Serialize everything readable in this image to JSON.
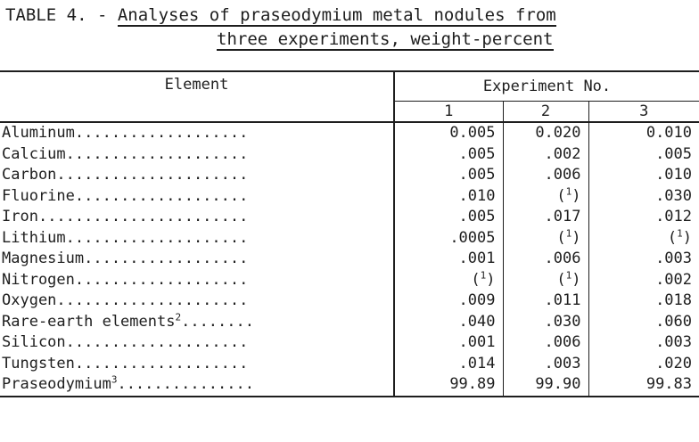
{
  "caption": {
    "prefix": "TABLE 4. - ",
    "line1": "Analyses of praseodymium metal nodules from",
    "line2": "three experiments, weight-percent"
  },
  "table": {
    "element_header": "Element",
    "group_header": "Experiment No.",
    "experiments": [
      "1",
      "2",
      "3"
    ],
    "rows": [
      {
        "name": "Aluminum",
        "sup": "",
        "dots": "...................",
        "values": [
          "0.005",
          "0.020",
          "0.010"
        ]
      },
      {
        "name": "Calcium",
        "sup": "",
        "dots": "....................",
        "values": [
          ".005",
          ".002",
          ".005"
        ]
      },
      {
        "name": "Carbon",
        "sup": "",
        "dots": ".....................",
        "values": [
          ".005",
          ".006",
          ".010"
        ]
      },
      {
        "name": "Fluorine",
        "sup": "",
        "dots": "...................",
        "values": [
          ".010",
          "(1)",
          ".030"
        ]
      },
      {
        "name": "Iron",
        "sup": "",
        "dots": ".......................",
        "values": [
          ".005",
          ".017",
          ".012"
        ]
      },
      {
        "name": "Lithium",
        "sup": "",
        "dots": "....................",
        "values": [
          ".0005",
          "(1)",
          "(1)"
        ]
      },
      {
        "name": "Magnesium",
        "sup": "",
        "dots": "..................",
        "values": [
          ".001",
          ".006",
          ".003"
        ]
      },
      {
        "name": "Nitrogen",
        "sup": "",
        "dots": "...................",
        "values": [
          "(1)",
          "(1)",
          ".002"
        ]
      },
      {
        "name": "Oxygen",
        "sup": "",
        "dots": ".....................",
        "values": [
          ".009",
          ".011",
          ".018"
        ]
      },
      {
        "name": "Rare-earth elements",
        "sup": "2",
        "dots": "........",
        "values": [
          ".040",
          ".030",
          ".060"
        ]
      },
      {
        "name": "Silicon",
        "sup": "",
        "dots": "....................",
        "values": [
          ".001",
          ".006",
          ".003"
        ]
      },
      {
        "name": "Tungsten",
        "sup": "",
        "dots": "...................",
        "values": [
          ".014",
          ".003",
          ".020"
        ]
      },
      {
        "name": "Praseodymium",
        "sup": "3",
        "dots": "...............",
        "values": [
          "99.89",
          "99.90",
          "99.83"
        ]
      }
    ]
  }
}
